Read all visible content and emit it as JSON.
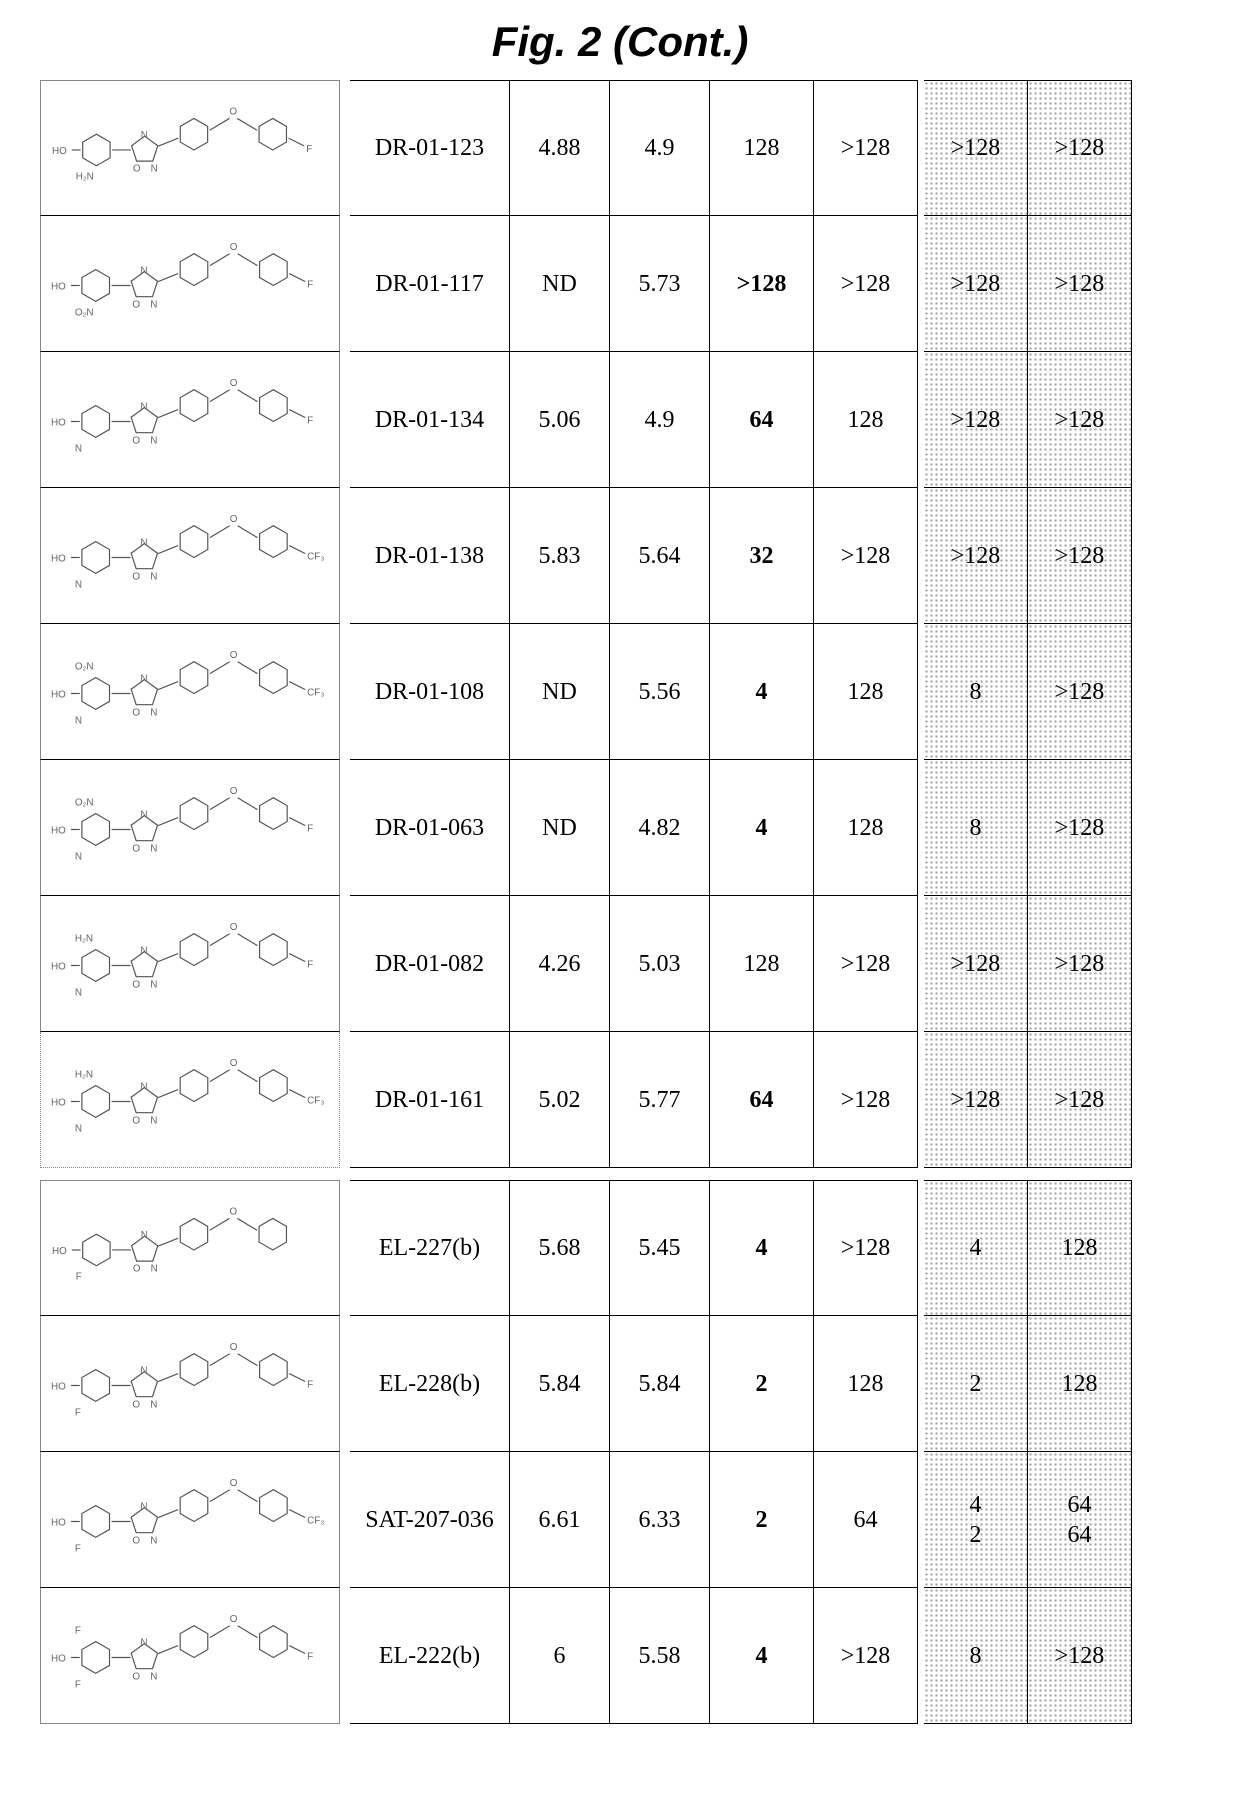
{
  "title": "Fig. 2 (Cont.)",
  "colors": {
    "text": "#000000",
    "background": "#ffffff",
    "border": "#000000",
    "structBorder": "#888888",
    "shadeDot": "#a9a9a9"
  },
  "layout": {
    "rowHeightPx": 136,
    "colWidthsPx": {
      "struct": 300,
      "gap1": 10,
      "name": 160,
      "v1": 100,
      "v2": 100,
      "v3": 104,
      "v4": 104,
      "gap2": 6,
      "v5": 104,
      "v6": 104
    },
    "titleFontSizePx": 42,
    "cellFontSizePx": 24
  },
  "structureColumnStyle": {
    "linesColor": "#555555",
    "labelColor": "#666666",
    "labelFontSizePx": 10
  },
  "groups": [
    {
      "rows": [
        {
          "structure": {
            "leftLabel": "HO",
            "leftSubLabel": "H₂N",
            "rightTopLabel": "O",
            "rightLabel": "F",
            "leftRing": "benzene",
            "midRing": "oxadiazole",
            "r1": "benzene",
            "r2": "benzene"
          },
          "name": "DR-01-123",
          "v1": "4.88",
          "v2": "4.9",
          "v3": "128",
          "v3Bold": false,
          "v4": ">128",
          "v5": ">128",
          "v6": ">128"
        },
        {
          "structure": {
            "leftLabel": "HO",
            "leftSubLabel": "O₂N",
            "rightTopLabel": "O",
            "rightLabel": "F",
            "leftRing": "benzene",
            "midRing": "oxadiazole",
            "r1": "benzene",
            "r2": "benzene"
          },
          "name": "DR-01-117",
          "v1": "ND",
          "v2": "5.73",
          "v3": ">128",
          "v3Bold": true,
          "v4": ">128",
          "v5": ">128",
          "v6": ">128"
        },
        {
          "structure": {
            "leftLabel": "HO",
            "leftSubLabel": "N",
            "rightTopLabel": "O",
            "rightLabel": "F",
            "leftRing": "pyridine",
            "midRing": "oxadiazole",
            "r1": "benzene",
            "r2": "benzene"
          },
          "name": "DR-01-134",
          "v1": "5.06",
          "v2": "4.9",
          "v3": "64",
          "v3Bold": true,
          "v4": "128",
          "v5": ">128",
          "v6": ">128"
        },
        {
          "structure": {
            "leftLabel": "HO",
            "leftSubLabel": "N",
            "rightTopLabel": "O",
            "rightLabel": "CF₃",
            "leftRing": "pyridine",
            "midRing": "oxadiazole",
            "r1": "benzene",
            "r2": "benzene"
          },
          "name": "DR-01-138",
          "v1": "5.83",
          "v2": "5.64",
          "v3": "32",
          "v3Bold": true,
          "v4": ">128",
          "v5": ">128",
          "v6": ">128"
        },
        {
          "structure": {
            "leftLabel": "HO",
            "leftSubLabel": "N",
            "leftTopLabel": "O₂N",
            "rightTopLabel": "O",
            "rightLabel": "CF₃",
            "leftRing": "pyridine",
            "midRing": "oxadiazole",
            "r1": "benzene",
            "r2": "benzene"
          },
          "name": "DR-01-108",
          "v1": "ND",
          "v2": "5.56",
          "v3": "4",
          "v3Bold": true,
          "v4": "128",
          "v5": "8",
          "v6": ">128"
        },
        {
          "structure": {
            "leftLabel": "HO",
            "leftSubLabel": "N",
            "leftTopLabel": "O₂N",
            "rightTopLabel": "O",
            "rightLabel": "F",
            "leftRing": "pyridine",
            "midRing": "oxadiazole",
            "r1": "benzene",
            "r2": "benzene"
          },
          "name": "DR-01-063",
          "v1": "ND",
          "v2": "4.82",
          "v3": "4",
          "v3Bold": true,
          "v4": "128",
          "v5": "8",
          "v6": ">128"
        },
        {
          "structure": {
            "leftLabel": "HO",
            "leftSubLabel": "N",
            "leftTopLabel": "H₂N",
            "rightTopLabel": "O",
            "rightLabel": "F",
            "leftRing": "pyridine",
            "midRing": "oxadiazole",
            "r1": "benzene",
            "r2": "benzene"
          },
          "name": "DR-01-082",
          "v1": "4.26",
          "v2": "5.03",
          "v3": "128",
          "v3Bold": false,
          "v4": ">128",
          "v5": ">128",
          "v6": ">128"
        },
        {
          "structure": {
            "leftLabel": "HO",
            "leftSubLabel": "N",
            "leftTopLabel": "H₂N",
            "rightTopLabel": "O",
            "rightLabel": "CF₃",
            "leftRing": "pyridine",
            "midRing": "oxadiazole",
            "r1": "benzene",
            "r2": "benzene"
          },
          "name": "DR-01-161",
          "v1": "5.02",
          "v2": "5.77",
          "v3": "64",
          "v3Bold": true,
          "v4": ">128",
          "v5": ">128",
          "v6": ">128",
          "dashedBottom": true
        }
      ]
    },
    {
      "rows": [
        {
          "structure": {
            "leftLabel": "HO",
            "leftSubLabel": "F",
            "rightTopLabel": "O",
            "rightLabel": "",
            "leftRing": "benzene",
            "midRing": "oxadiazole",
            "r1": "benzene",
            "r2": "benzene"
          },
          "name": "EL-227(b)",
          "v1": "5.68",
          "v2": "5.45",
          "v3": "4",
          "v3Bold": true,
          "v4": ">128",
          "v5": "4",
          "v6": "128"
        },
        {
          "structure": {
            "leftLabel": "HO",
            "leftSubLabel": "F",
            "rightTopLabel": "O",
            "rightLabel": "F",
            "leftRing": "benzene",
            "midRing": "oxadiazole",
            "r1": "benzene",
            "r2": "benzene"
          },
          "name": "EL-228(b)",
          "v1": "5.84",
          "v2": "5.84",
          "v3": "2",
          "v3Bold": true,
          "v4": "128",
          "v5": "2",
          "v6": "128"
        },
        {
          "structure": {
            "leftLabel": "HO",
            "leftSubLabel": "F",
            "rightTopLabel": "O",
            "rightLabel": "CF₃",
            "leftRing": "benzene",
            "midRing": "oxadiazole",
            "r1": "benzene",
            "r2": "benzene"
          },
          "name": "SAT-207-036",
          "v1": "6.61",
          "v2": "6.33",
          "v3": "2",
          "v3Bold": true,
          "v4": "64",
          "v5": "4\n2",
          "v6": "64\n64"
        },
        {
          "structure": {
            "leftLabel": "HO",
            "leftSubLabel": "F",
            "leftTopLabel": "F",
            "rightTopLabel": "O",
            "rightLabel": "F",
            "leftRing": "benzene",
            "midRing": "oxadiazole",
            "r1": "benzene",
            "r2": "benzene"
          },
          "name": "EL-222(b)",
          "v1": "6",
          "v2": "5.58",
          "v3": "4",
          "v3Bold": true,
          "v4": ">128",
          "v5": "8",
          "v6": ">128"
        }
      ]
    }
  ]
}
